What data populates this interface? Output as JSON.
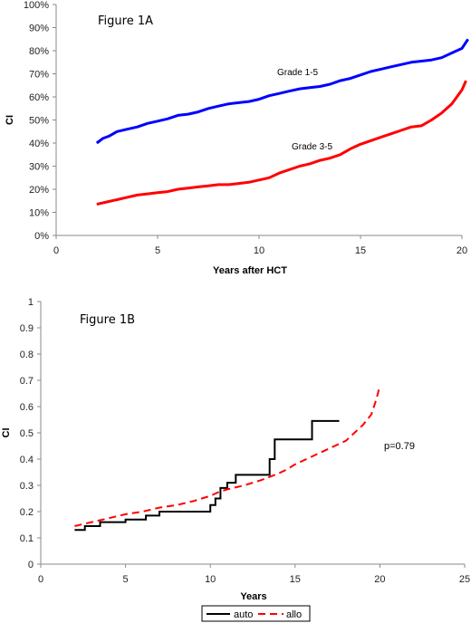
{
  "chart_data": [
    {
      "type": "line",
      "title": "Figure 1A",
      "xlabel": "Years after HCT",
      "ylabel": "CI",
      "xlim": [
        0,
        20
      ],
      "ylim": [
        0,
        100
      ],
      "x_ticks": [
        "0",
        "5",
        "10",
        "15",
        "20"
      ],
      "y_ticks": [
        "0%",
        "10%",
        "20%",
        "30%",
        "40%",
        "50%",
        "60%",
        "70%",
        "80%",
        "90%",
        "100%"
      ],
      "series": [
        {
          "name": "Grade 1-5",
          "color": "#0000ff",
          "x": [
            2.0,
            2.3,
            2.6,
            3.0,
            3.5,
            4.0,
            4.5,
            5.0,
            5.5,
            6.0,
            6.5,
            7.0,
            7.5,
            8.0,
            8.5,
            9.0,
            9.5,
            10.0,
            10.5,
            11.0,
            11.5,
            12.0,
            12.5,
            13.0,
            13.5,
            14.0,
            14.5,
            15.0,
            15.5,
            16.0,
            16.5,
            17.0,
            17.5,
            18.0,
            18.5,
            19.0,
            19.5,
            20.0,
            20.3
          ],
          "y": [
            40,
            42,
            43,
            45,
            46,
            47,
            48.5,
            49.5,
            50.5,
            52,
            52.5,
            53.5,
            55,
            56,
            57,
            57.5,
            58,
            59,
            60.5,
            61.5,
            62.5,
            63.5,
            64,
            64.5,
            65.5,
            67,
            68,
            69.5,
            71,
            72,
            73,
            74,
            75,
            75.5,
            76,
            77,
            79,
            81,
            85
          ]
        },
        {
          "name": "Grade 3-5",
          "color": "#ff0000",
          "x": [
            2.0,
            2.5,
            3.0,
            3.5,
            4.0,
            4.5,
            5.0,
            5.5,
            6.0,
            6.5,
            7.0,
            7.5,
            8.0,
            8.5,
            9.0,
            9.5,
            10.0,
            10.5,
            11.0,
            11.5,
            12.0,
            12.5,
            13.0,
            13.5,
            14.0,
            14.5,
            15.0,
            15.5,
            16.0,
            16.5,
            17.0,
            17.5,
            18.0,
            18.5,
            19.0,
            19.5,
            20.0,
            20.2
          ],
          "y": [
            13.5,
            14.5,
            15.5,
            16.5,
            17.5,
            18,
            18.5,
            19,
            20,
            20.5,
            21,
            21.5,
            22,
            22,
            22.5,
            23,
            24,
            25,
            27,
            28.5,
            30,
            31,
            32.5,
            33.5,
            35,
            37.5,
            39.5,
            41,
            42.5,
            44,
            45.5,
            47,
            47.5,
            50,
            53,
            57,
            63,
            67
          ]
        }
      ],
      "annotations": [
        "Grade 1-5",
        "Grade 3-5"
      ]
    },
    {
      "type": "line",
      "title": "Figure 1B",
      "xlabel": "Years",
      "ylabel": "CI",
      "xlim": [
        0,
        25
      ],
      "ylim": [
        0,
        1
      ],
      "x_ticks": [
        "0",
        "5",
        "10",
        "15",
        "20",
        "25"
      ],
      "y_ticks": [
        "0",
        "0.1",
        "0.2",
        "0.3",
        "0.4",
        "0.5",
        "0.6",
        "0.7",
        "0.8",
        "0.9",
        "1"
      ],
      "legend_position": "bottom",
      "annotation": "p=0.79",
      "series": [
        {
          "name": "auto",
          "color": "#000000",
          "style": "solid",
          "x": [
            2.0,
            2.6,
            2.6,
            3.5,
            3.5,
            5.0,
            5.0,
            6.2,
            6.2,
            7.0,
            7.0,
            10.0,
            10.0,
            10.3,
            10.3,
            10.6,
            10.6,
            11.0,
            11.0,
            11.5,
            11.5,
            12.2,
            12.2,
            13.5,
            13.5,
            13.8,
            13.8,
            14.0,
            14.0,
            16.0,
            16.0,
            17.6
          ],
          "y": [
            0.13,
            0.13,
            0.145,
            0.145,
            0.16,
            0.16,
            0.17,
            0.17,
            0.185,
            0.185,
            0.2,
            0.2,
            0.225,
            0.225,
            0.25,
            0.25,
            0.29,
            0.29,
            0.31,
            0.31,
            0.34,
            0.34,
            0.34,
            0.34,
            0.4,
            0.4,
            0.475,
            0.475,
            0.475,
            0.475,
            0.545,
            0.545
          ]
        },
        {
          "name": "allo",
          "color": "#ff0000",
          "style": "dashed",
          "x": [
            2.0,
            3.0,
            4.0,
            5.0,
            6.0,
            7.0,
            8.0,
            9.0,
            10.0,
            10.5,
            11.0,
            12.0,
            13.0,
            14.0,
            14.5,
            15.0,
            16.0,
            17.0,
            18.0,
            18.5,
            19.0,
            19.5,
            19.8,
            20.0
          ],
          "y": [
            0.145,
            0.16,
            0.175,
            0.19,
            0.2,
            0.215,
            0.225,
            0.24,
            0.26,
            0.275,
            0.285,
            0.3,
            0.32,
            0.345,
            0.36,
            0.38,
            0.41,
            0.44,
            0.47,
            0.5,
            0.53,
            0.57,
            0.63,
            0.68
          ]
        }
      ]
    }
  ]
}
